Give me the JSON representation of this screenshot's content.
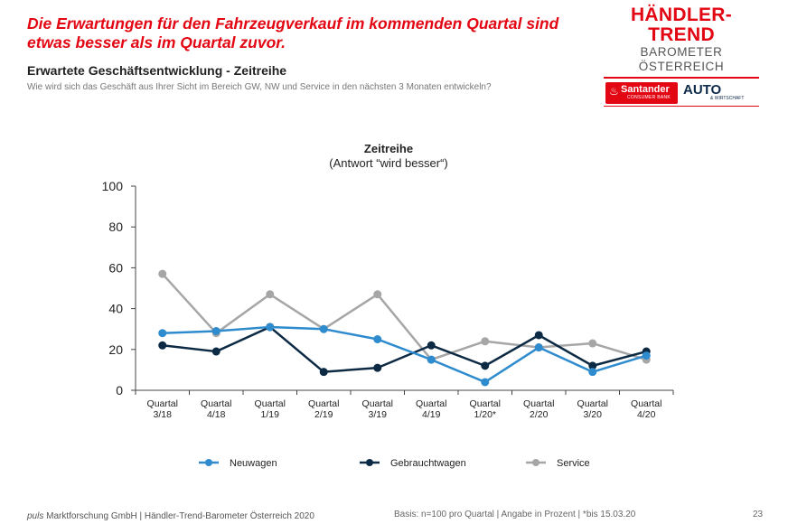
{
  "headline": "Die Erwartungen für den Fahrzeugverkauf im kommenden Quartal sind etwas besser als im Quartal zuvor.",
  "brand": {
    "title": "HÄNDLER-TREND",
    "subtitle": "BAROMETER ÖSTERREICH",
    "santander_name": "Santander",
    "santander_tag": "CONSUMER BANK",
    "auto_name": "AUTO",
    "auto_sub": "& WIRTSCHAFT"
  },
  "section": {
    "title": "Erwartete Geschäftsentwicklung - Zeitreihe",
    "question": "Wie wird sich das Geschäft aus Ihrer Sicht im Bereich GW, NW und Service in den nächsten 3 Monaten entwickeln?"
  },
  "chart_data": {
    "type": "line",
    "title": "Zeitreihe",
    "subtitle": "(Antwort “wird besser“)",
    "categories": [
      [
        "Quartal",
        "3/18"
      ],
      [
        "Quartal",
        "4/18"
      ],
      [
        "Quartal",
        "1/19"
      ],
      [
        "Quartal",
        "2/19"
      ],
      [
        "Quartal",
        "3/19"
      ],
      [
        "Quartal",
        "4/19"
      ],
      [
        "Quartal",
        "1/20*"
      ],
      [
        "Quartal",
        "2/20"
      ],
      [
        "Quartal",
        "3/20"
      ],
      [
        "Quartal",
        "4/20"
      ]
    ],
    "ylim": [
      0,
      100
    ],
    "yticks": [
      0,
      20,
      40,
      60,
      80,
      100
    ],
    "legend_position": "bottom",
    "series": [
      {
        "name": "Neuwagen",
        "color": "#2e8bce",
        "values": [
          28,
          29,
          31,
          30,
          25,
          15,
          4,
          21,
          9,
          17
        ]
      },
      {
        "name": "Gebrauchtwagen",
        "color": "#0d2a44",
        "values": [
          22,
          19,
          31,
          9,
          11,
          22,
          12,
          27,
          12,
          19
        ]
      },
      {
        "name": "Service",
        "color": "#a6a6a6",
        "values": [
          57,
          28,
          47,
          30,
          47,
          15,
          24,
          21,
          23,
          15
        ]
      }
    ]
  },
  "footer": {
    "company_italic": "puls",
    "company_rest": " Marktforschung GmbH | Händler-Trend-Barometer Österreich 2020",
    "basis": "Basis: n=100 pro Quartal | Angabe in Prozent | *bis 15.03.20",
    "page": "23"
  }
}
